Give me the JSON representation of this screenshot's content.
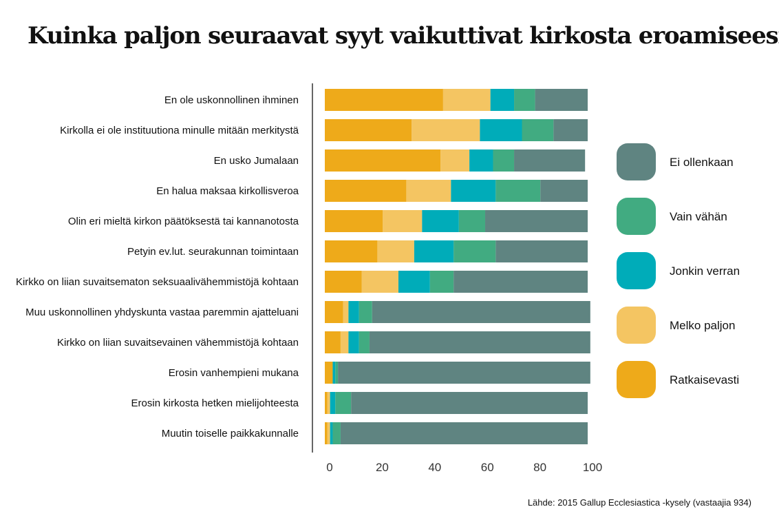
{
  "title": "Kuinka paljon seuraavat syyt vaikuttivat kirkosta eroamiseesi?",
  "source": "Lähde: 2015 Gallup Ecclesiastica -kysely (vastaajia 934)",
  "colors": {
    "Ratkaisevasti": "#eeaa1a",
    "Melko paljon": "#f4c562",
    "Jonkin verran": "#00acb9",
    "Vain vähän": "#41ab81",
    "Ei ollenkaan": "#5f8481",
    "axis": "#333333"
  },
  "chart_data": {
    "type": "bar",
    "orientation": "horizontal",
    "stacked": true,
    "title": "Kuinka paljon seuraavat syyt vaikuttivat kirkosta eroamiseesi?",
    "xlim": [
      0,
      100
    ],
    "xticks": [
      0,
      20,
      40,
      60,
      80,
      100
    ],
    "grid": false,
    "legend_position": "right",
    "categories": [
      "En ole uskonnollinen ihminen",
      "Kirkolla ei ole instituutiona minulle mitään merkitystä",
      "En usko Jumalaan",
      "En halua maksaa kirkollisveroa",
      "Olin eri mieltä kirkon päätöksestä tai kannanotosta",
      "Petyin ev.lut. seurakunnan toimintaan",
      "Kirkko on liian suvaitsematon seksuaalivähemmistöjä kohtaan",
      "Muu uskonnollinen yhdyskunta vastaa paremmin ajatteluani",
      "Kirkko on liian suvaitsevainen vähemmistöjä kohtaan",
      "Erosin vanhempieni mukana",
      "Erosin kirkosta hetken mielijohteesta",
      "Muutin toiselle paikkakunnalle"
    ],
    "series": [
      {
        "name": "Ratkaisevasti",
        "values": [
          45,
          33,
          44,
          31,
          22,
          20,
          14,
          7,
          6,
          3,
          1,
          1
        ]
      },
      {
        "name": "Melko paljon",
        "values": [
          18,
          26,
          11,
          17,
          15,
          14,
          14,
          2,
          3,
          0,
          1,
          1
        ]
      },
      {
        "name": "Jonkin verran",
        "values": [
          9,
          16,
          9,
          17,
          14,
          15,
          12,
          4,
          4,
          1,
          2,
          1
        ]
      },
      {
        "name": "Vain vähän",
        "values": [
          8,
          12,
          8,
          17,
          10,
          16,
          9,
          5,
          4,
          1,
          6,
          3
        ]
      },
      {
        "name": "Ei ollenkaan",
        "values": [
          20,
          13,
          27,
          18,
          39,
          35,
          51,
          83,
          84,
          96,
          90,
          94
        ]
      }
    ],
    "legend_order": [
      "Ei ollenkaan",
      "Vain vähän",
      "Jonkin verran",
      "Melko paljon",
      "Ratkaisevasti"
    ]
  }
}
